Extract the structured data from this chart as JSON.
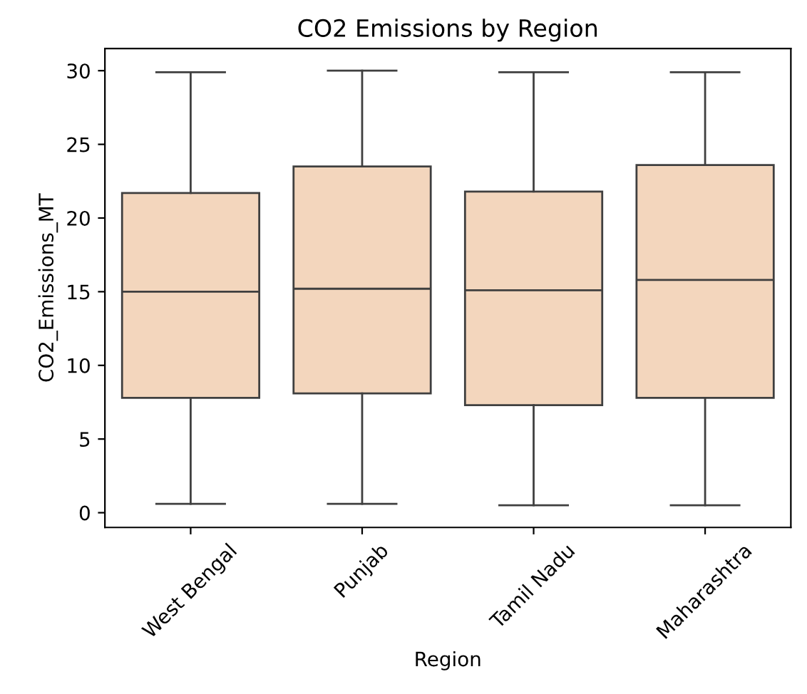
{
  "chart_data": {
    "type": "box",
    "title": "CO2 Emissions by Region",
    "xlabel": "Region",
    "ylabel": "CO2_Emissions_MT",
    "categories": [
      "West Bengal",
      "Punjab",
      "Tamil Nadu",
      "Maharashtra"
    ],
    "color": "#f3d6bd",
    "boxes": [
      {
        "low": 0.6,
        "q1": 7.8,
        "median": 15.0,
        "q3": 21.7,
        "high": 29.9
      },
      {
        "low": 0.6,
        "q1": 8.1,
        "median": 15.2,
        "q3": 23.5,
        "high": 30.0
      },
      {
        "low": 0.5,
        "q1": 7.3,
        "median": 15.1,
        "q3": 21.8,
        "high": 29.9
      },
      {
        "low": 0.5,
        "q1": 7.8,
        "median": 15.8,
        "q3": 23.6,
        "high": 29.9
      }
    ],
    "ylim": [
      -1,
      31.5
    ],
    "yticks": [
      0,
      5,
      10,
      15,
      20,
      25,
      30
    ],
    "grid": false,
    "legend": false
  }
}
